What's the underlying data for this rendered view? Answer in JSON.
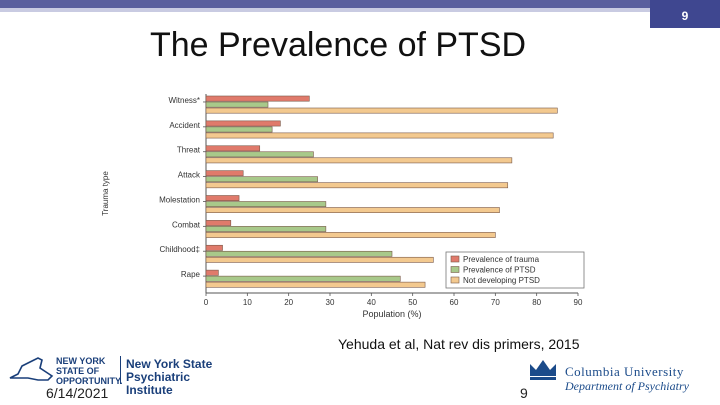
{
  "slide": {
    "title": "The Prevalence of PTSD",
    "page_badge": "9",
    "citation": "Yehuda et al, Nat rev dis primers, 2015",
    "date": "6/14/2021",
    "slide_number": "9",
    "accent_color": "#3f4790"
  },
  "logos": {
    "nys": {
      "tagline_lines": [
        "NEW YORK",
        "STATE OF",
        "OPPORTUNITY."
      ],
      "name_lines": [
        "New York State",
        "Psychiatric Institute"
      ]
    },
    "columbia": {
      "university": "Columbia University",
      "department": "Department of Psychiatry"
    }
  },
  "chart_data": {
    "type": "bar",
    "orientation": "horizontal",
    "categories": [
      "Witness*",
      "Accident",
      "Threat",
      "Attack",
      "Molestation",
      "Combat",
      "Childhood‡",
      "Rape"
    ],
    "series": [
      {
        "name": "Prevalence of trauma",
        "values": [
          25,
          18,
          13,
          9,
          8,
          6,
          4,
          3
        ],
        "color": "#e07a6b"
      },
      {
        "name": "Prevalence of PTSD",
        "values": [
          15,
          16,
          26,
          27,
          29,
          29,
          45,
          47
        ],
        "color": "#a8c98a"
      },
      {
        "name": "Not developing PTSD",
        "values": [
          85,
          84,
          74,
          73,
          71,
          70,
          55,
          53
        ],
        "color": "#f3c98f"
      }
    ],
    "xlabel": "Population (%)",
    "ylabel": "Trauma type",
    "xlim": [
      0,
      90
    ],
    "xticks": [
      "0",
      "10",
      "20",
      "30",
      "40",
      "50",
      "60",
      "70",
      "80",
      "90"
    ],
    "legend_position": "bottom-right",
    "grid": false
  }
}
